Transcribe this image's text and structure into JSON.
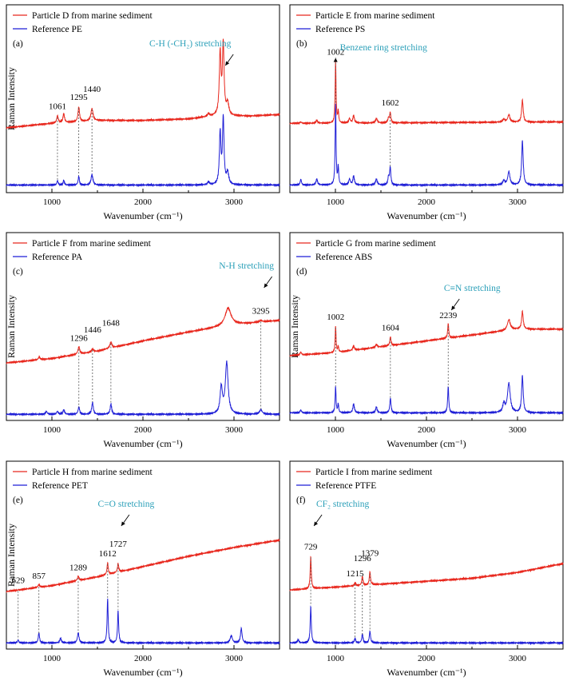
{
  "figure": {
    "colors": {
      "sample": "#e8281e",
      "reference": "#1f1fd6",
      "annotation": "#2a9fb8",
      "axis": "#000000",
      "dash": "#555555"
    }
  },
  "chart_data": [
    {
      "type": "line",
      "panel_label": "(a)",
      "xlabel": "Wavenumber (cm⁻¹)",
      "ylabel": "Raman Intensity",
      "xlim": [
        500,
        3500
      ],
      "xticks": [
        1000,
        2000,
        3000
      ],
      "legend": {
        "placement": "top-left",
        "entries": [
          "Particle D from marine sediment",
          "Reference PE"
        ]
      },
      "series": [
        {
          "name": "Particle D from marine sediment",
          "color": "#e8281e",
          "baseline": [
            [
              500,
              0.42
            ],
            [
              1000,
              0.45
            ],
            [
              1500,
              0.47
            ],
            [
              2000,
              0.47
            ],
            [
              2500,
              0.48
            ],
            [
              2800,
              0.5
            ],
            [
              3200,
              0.5
            ],
            [
              3500,
              0.51
            ]
          ],
          "peaks": [
            [
              1061,
              0.05,
              10
            ],
            [
              1130,
              0.06,
              10
            ],
            [
              1295,
              0.1,
              10
            ],
            [
              1440,
              0.08,
              14
            ],
            [
              2720,
              0.02,
              12
            ],
            [
              2848,
              0.42,
              11
            ],
            [
              2882,
              0.48,
              11
            ],
            [
              2930,
              0.08,
              15
            ]
          ]
        },
        {
          "name": "Reference PE",
          "color": "#1f1fd6",
          "baseline": [
            [
              500,
              0.03
            ],
            [
              3500,
              0.03
            ]
          ],
          "peaks": [
            [
              1061,
              0.03,
              8
            ],
            [
              1130,
              0.03,
              8
            ],
            [
              1295,
              0.06,
              8
            ],
            [
              1440,
              0.07,
              12
            ],
            [
              2720,
              0.02,
              12
            ],
            [
              2848,
              0.35,
              10
            ],
            [
              2882,
              0.45,
              10
            ],
            [
              2930,
              0.08,
              14
            ]
          ]
        }
      ],
      "peak_labels": [
        {
          "x": 1061,
          "text": "1061"
        },
        {
          "x": 1295,
          "text": "1295"
        },
        {
          "x": 1440,
          "text": "1440"
        }
      ],
      "annotation": {
        "text": "C-H (-CH₂) stretching",
        "target_x": 2870
      }
    },
    {
      "type": "line",
      "panel_label": "(b)",
      "xlabel": "Wavenumber (cm⁻¹)",
      "ylabel": "",
      "xlim": [
        500,
        3500
      ],
      "xticks": [
        1000,
        2000,
        3000
      ],
      "legend": {
        "placement": "top-left",
        "entries": [
          "Particle E from marine sediment",
          "Reference PS"
        ]
      },
      "series": [
        {
          "name": "Particle E from marine sediment",
          "color": "#e8281e",
          "baseline": [
            [
              500,
              0.45
            ],
            [
              3500,
              0.46
            ]
          ],
          "peaks": [
            [
              620,
              0.01,
              8
            ],
            [
              795,
              0.02,
              10
            ],
            [
              1002,
              0.42,
              6
            ],
            [
              1031,
              0.08,
              6
            ],
            [
              1155,
              0.03,
              10
            ],
            [
              1200,
              0.05,
              10
            ],
            [
              1450,
              0.03,
              12
            ],
            [
              1583,
              0.03,
              8
            ],
            [
              1602,
              0.07,
              8
            ],
            [
              2850,
              0.02,
              14
            ],
            [
              2905,
              0.05,
              14
            ],
            [
              3054,
              0.15,
              10
            ]
          ]
        },
        {
          "name": "Reference PS",
          "color": "#1f1fd6",
          "baseline": [
            [
              500,
              0.03
            ],
            [
              3500,
              0.03
            ]
          ],
          "peaks": [
            [
              620,
              0.04,
              8
            ],
            [
              795,
              0.04,
              10
            ],
            [
              1002,
              0.55,
              6
            ],
            [
              1031,
              0.12,
              6
            ],
            [
              1155,
              0.04,
              10
            ],
            [
              1200,
              0.06,
              10
            ],
            [
              1450,
              0.04,
              12
            ],
            [
              1583,
              0.05,
              8
            ],
            [
              1602,
              0.12,
              8
            ],
            [
              2850,
              0.03,
              14
            ],
            [
              2905,
              0.09,
              14
            ],
            [
              3054,
              0.3,
              10
            ]
          ]
        }
      ],
      "peak_labels": [
        {
          "x": 1002,
          "text": "1002"
        },
        {
          "x": 1602,
          "text": "1602"
        }
      ],
      "annotation": {
        "text": "Benzene ring stretching",
        "target_x": 1002
      }
    },
    {
      "type": "line",
      "panel_label": "(c)",
      "xlabel": "Wavenumber (cm⁻¹)",
      "ylabel": "Raman Intensity",
      "xlim": [
        500,
        3500
      ],
      "xticks": [
        1000,
        2000,
        3000
      ],
      "legend": {
        "placement": "top-left",
        "entries": [
          "Particle F from marine sediment",
          "Reference PA"
        ]
      },
      "series": [
        {
          "name": "Particle F from marine sediment",
          "color": "#e8281e",
          "baseline": [
            [
              500,
              0.37
            ],
            [
              1000,
              0.4
            ],
            [
              1500,
              0.45
            ],
            [
              2000,
              0.52
            ],
            [
              2500,
              0.58
            ],
            [
              3000,
              0.63
            ],
            [
              3500,
              0.66
            ]
          ],
          "peaks": [
            [
              860,
              0.02,
              10
            ],
            [
              1296,
              0.05,
              12
            ],
            [
              1446,
              0.02,
              12
            ],
            [
              1648,
              0.04,
              14
            ],
            [
              2935,
              0.12,
              40
            ],
            [
              3295,
              0.01,
              20
            ]
          ]
        },
        {
          "name": "Reference PA",
          "color": "#1f1fd6",
          "baseline": [
            [
              500,
              0.02
            ],
            [
              3500,
              0.02
            ]
          ],
          "peaks": [
            [
              940,
              0.02,
              10
            ],
            [
              1060,
              0.02,
              10
            ],
            [
              1130,
              0.03,
              10
            ],
            [
              1296,
              0.05,
              10
            ],
            [
              1446,
              0.08,
              10
            ],
            [
              1648,
              0.07,
              10
            ],
            [
              2860,
              0.18,
              15
            ],
            [
              2920,
              0.35,
              18
            ],
            [
              3295,
              0.03,
              18
            ]
          ]
        }
      ],
      "peak_labels": [
        {
          "x": 1296,
          "text": "1296"
        },
        {
          "x": 1446,
          "text": "1446"
        },
        {
          "x": 1648,
          "text": "1648"
        },
        {
          "x": 3295,
          "text": "3295"
        }
      ],
      "annotation": {
        "text": "N-H stretching",
        "target_x": 3295
      }
    },
    {
      "type": "line",
      "panel_label": "(d)",
      "xlabel": "Wavenumber (cm⁻¹)",
      "ylabel": "Raman Intensity",
      "xlim": [
        500,
        3500
      ],
      "xticks": [
        1000,
        2000,
        3000
      ],
      "legend": {
        "placement": "top-left",
        "entries": [
          "Particle G from marine sediment",
          "Reference ABS"
        ]
      },
      "series": [
        {
          "name": "Particle G from marine sediment",
          "color": "#e8281e",
          "baseline": [
            [
              500,
              0.42
            ],
            [
              1000,
              0.44
            ],
            [
              1500,
              0.48
            ],
            [
              2000,
              0.52
            ],
            [
              2500,
              0.56
            ],
            [
              3000,
              0.6
            ],
            [
              3500,
              0.6
            ]
          ],
          "peaks": [
            [
              620,
              0.02,
              8
            ],
            [
              1002,
              0.18,
              6
            ],
            [
              1031,
              0.04,
              6
            ],
            [
              1200,
              0.03,
              10
            ],
            [
              1450,
              0.02,
              10
            ],
            [
              1604,
              0.06,
              8
            ],
            [
              2239,
              0.1,
              7
            ],
            [
              2905,
              0.07,
              20
            ],
            [
              3054,
              0.12,
              10
            ]
          ]
        },
        {
          "name": "Reference ABS",
          "color": "#1f1fd6",
          "baseline": [
            [
              500,
              0.03
            ],
            [
              3500,
              0.03
            ]
          ],
          "peaks": [
            [
              620,
              0.02,
              8
            ],
            [
              1002,
              0.18,
              6
            ],
            [
              1031,
              0.06,
              6
            ],
            [
              1200,
              0.06,
              10
            ],
            [
              1450,
              0.04,
              10
            ],
            [
              1604,
              0.1,
              8
            ],
            [
              2239,
              0.18,
              7
            ],
            [
              2850,
              0.06,
              14
            ],
            [
              2905,
              0.2,
              18
            ],
            [
              3054,
              0.25,
              10
            ]
          ]
        }
      ],
      "peak_labels": [
        {
          "x": 1002,
          "text": "1002"
        },
        {
          "x": 1604,
          "text": "1604"
        },
        {
          "x": 2239,
          "text": "2239"
        }
      ],
      "annotation": {
        "text": "C≡N stretching",
        "target_x": 2239
      }
    },
    {
      "type": "line",
      "panel_label": "(e)",
      "xlabel": "Wavenumber (cm⁻¹)",
      "ylabel": "Raman Intensity",
      "xlim": [
        500,
        3500
      ],
      "xticks": [
        1000,
        2000,
        3000
      ],
      "legend": {
        "placement": "top-left",
        "entries": [
          "Particle H from marine sediment",
          "Reference PET"
        ]
      },
      "series": [
        {
          "name": "Particle H from marine sediment",
          "color": "#e8281e",
          "baseline": [
            [
              500,
              0.37
            ],
            [
              1000,
              0.41
            ],
            [
              1500,
              0.47
            ],
            [
              2000,
              0.54
            ],
            [
              2500,
              0.61
            ],
            [
              3000,
              0.67
            ],
            [
              3500,
              0.72
            ]
          ],
          "peaks": [
            [
              857,
              0.02,
              10
            ],
            [
              1289,
              0.03,
              10
            ],
            [
              1612,
              0.08,
              8
            ],
            [
              1727,
              0.06,
              8
            ]
          ]
        },
        {
          "name": "Reference PET",
          "color": "#1f1fd6",
          "baseline": [
            [
              500,
              0.02
            ],
            [
              3500,
              0.02
            ]
          ],
          "peaks": [
            [
              629,
              0.02,
              8
            ],
            [
              857,
              0.07,
              8
            ],
            [
              1095,
              0.03,
              10
            ],
            [
              1289,
              0.07,
              10
            ],
            [
              1612,
              0.3,
              7
            ],
            [
              1727,
              0.22,
              7
            ],
            [
              2970,
              0.05,
              14
            ],
            [
              3080,
              0.1,
              10
            ]
          ]
        }
      ],
      "peak_labels": [
        {
          "x": 629,
          "text": "629"
        },
        {
          "x": 857,
          "text": "857"
        },
        {
          "x": 1289,
          "text": "1289"
        },
        {
          "x": 1612,
          "text": "1612"
        },
        {
          "x": 1727,
          "text": "1727"
        }
      ],
      "annotation": {
        "text": "C=O stretching",
        "target_x": 1727
      }
    },
    {
      "type": "line",
      "panel_label": "(f)",
      "xlabel": "Wavenumber (cm⁻¹)",
      "ylabel": "",
      "xlim": [
        500,
        3500
      ],
      "xticks": [
        1000,
        2000,
        3000
      ],
      "legend": {
        "placement": "top-left",
        "entries": [
          "Particle I from marine sediment",
          "Reference PTFE"
        ]
      },
      "series": [
        {
          "name": "Particle I from marine sediment",
          "color": "#e8281e",
          "baseline": [
            [
              500,
              0.38
            ],
            [
              1000,
              0.4
            ],
            [
              1500,
              0.42
            ],
            [
              2000,
              0.44
            ],
            [
              2500,
              0.46
            ],
            [
              3000,
              0.5
            ],
            [
              3500,
              0.56
            ]
          ],
          "peaks": [
            [
              729,
              0.22,
              7
            ],
            [
              1215,
              0.02,
              8
            ],
            [
              1296,
              0.06,
              8
            ],
            [
              1379,
              0.09,
              8
            ]
          ]
        },
        {
          "name": "Reference PTFE",
          "color": "#1f1fd6",
          "baseline": [
            [
              500,
              0.02
            ],
            [
              3500,
              0.02
            ]
          ],
          "peaks": [
            [
              590,
              0.02,
              10
            ],
            [
              729,
              0.25,
              7
            ],
            [
              1215,
              0.03,
              8
            ],
            [
              1296,
              0.06,
              8
            ],
            [
              1379,
              0.08,
              8
            ]
          ]
        }
      ],
      "peak_labels": [
        {
          "x": 729,
          "text": "729"
        },
        {
          "x": 1215,
          "text": "1215"
        },
        {
          "x": 1296,
          "text": "1296"
        },
        {
          "x": 1379,
          "text": "1379"
        }
      ],
      "annotation": {
        "text": "CF₂ stretching",
        "target_x": 729
      }
    }
  ]
}
